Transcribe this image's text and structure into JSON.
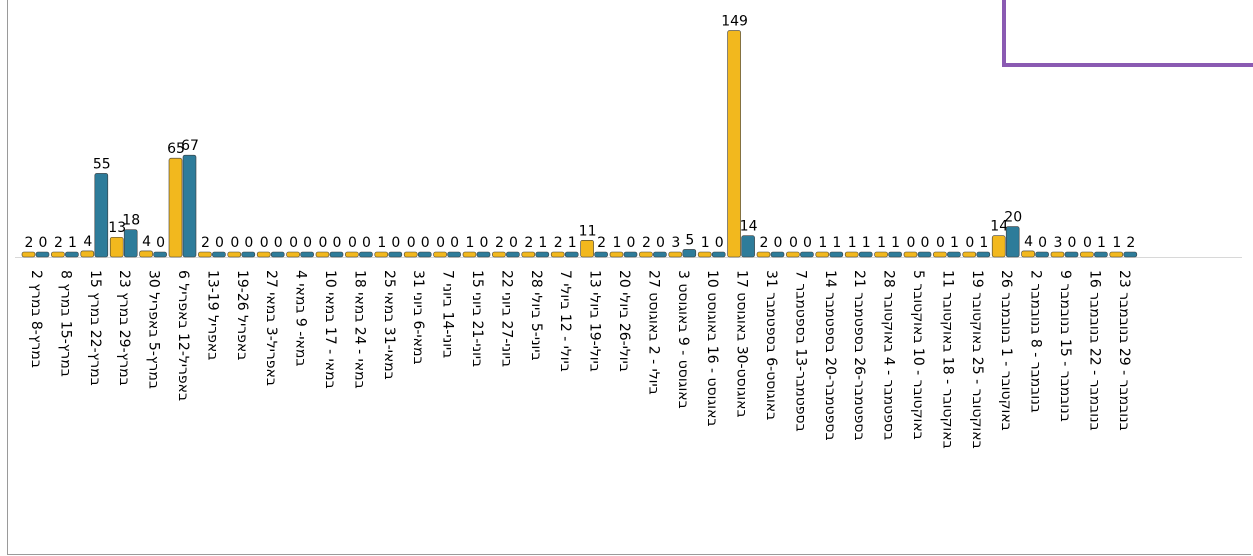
{
  "chart_data": {
    "type": "bar",
    "title": "",
    "xlabel": "",
    "ylabel": "",
    "ylim": [
      0,
      150
    ],
    "grid": false,
    "legend": "none",
    "colors": {
      "gold": "#f2b81e",
      "teal": "#2e7c9a"
    },
    "categories": [
      "2 במרץ-8 במרץ",
      "8 במרץ-15 במרץ",
      "15 במרץ-22 במרץ",
      "23 במרץ-29 במרץ",
      "30 במרץ-5 באפריל",
      "6 באפריל-12 באפריל",
      "13-19 באפריל",
      "19-26 באפריל",
      "27 באפריל-3 במאי",
      "4 במאי- 9 במאי",
      "10 במאי - 17 במאי",
      "18 במאי - 24 במאי",
      "25 במאי-31 במאי",
      "31 במאי-6 ביוני",
      "7 ביוני-14 ביוני",
      "15 ביוני-21 ביוני",
      "22 ביוני-27 ביוני",
      "28 ביוני-5 ביולי",
      "7 ביולי - 12 ביולי",
      "13 ביולי-19 ביולי",
      "20 ביולי-26 ביולי",
      "27 ביולי - 2 באוגוסט",
      "3 באוגוסט - 9 באוגוסט",
      "10 באוגוסט - 16 באוגוסט",
      "17 באוגוסט-30 באוגוסט",
      "31 באוגוסט-6 בספטמבר",
      "7 בספטמבר-13 בספטמבר",
      "14 בספטמבר-20 בספטמבר",
      "21 בספטמבר-26 בספטמבר",
      "28 בספטמבר - 4 באוקטובר",
      "5 באוקטובר - 10 באוקטובר",
      "11 באוקטובר - 18 באוקטובר",
      "19 באוקטובר - 25 באוקטובר",
      "26 באוקטובר - 1 בנובמבר",
      "2 בנובמבר - 8 בנובמבר",
      "9 בנובמבר - 15 בנובמבר",
      "16 בנובמבר - 22 בנובמבר",
      "23 בנובמבר - 29 בנובמבר"
    ],
    "series": [
      {
        "color": "#f2b81e",
        "values": [
          2,
          2,
          4,
          13,
          4,
          65,
          2,
          0,
          0,
          0,
          0,
          0,
          1,
          0,
          0,
          1,
          2,
          2,
          2,
          11,
          1,
          2,
          3,
          1,
          149,
          2,
          0,
          1,
          1,
          1,
          0,
          0,
          0,
          14,
          4,
          3,
          0,
          1
        ]
      },
      {
        "color": "#2e7c9a",
        "values": [
          0,
          1,
          55,
          18,
          0,
          67,
          0,
          0,
          0,
          0,
          0,
          0,
          0,
          0,
          0,
          0,
          0,
          1,
          1,
          2,
          0,
          0,
          5,
          0,
          14,
          0,
          0,
          1,
          1,
          1,
          0,
          1,
          1,
          20,
          0,
          0,
          1,
          2
        ]
      }
    ]
  }
}
